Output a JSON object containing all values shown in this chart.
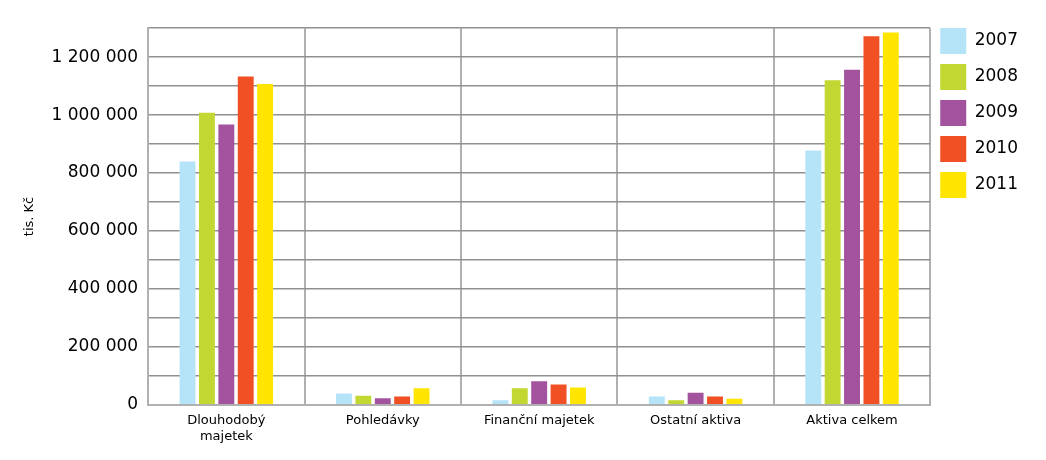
{
  "chart_data": {
    "type": "bar",
    "ylabel": "tis. Kč",
    "categories": [
      "Dlouhodobý majetek",
      "Pohledávky",
      "Finanční majetek",
      "Ostatní aktiva",
      "Aktiva celkem"
    ],
    "series": [
      {
        "name": "2007",
        "color": "#b5e3f8",
        "values": [
          840000,
          39000,
          16000,
          29000,
          878000
        ]
      },
      {
        "name": "2008",
        "color": "#c2d731",
        "values": [
          1008000,
          31000,
          57000,
          16000,
          1120000
        ]
      },
      {
        "name": "2009",
        "color": "#a3529d",
        "values": [
          968000,
          23000,
          81000,
          42000,
          1157000
        ]
      },
      {
        "name": "2010",
        "color": "#f05023",
        "values": [
          1133000,
          29000,
          70000,
          29000,
          1272000
        ]
      },
      {
        "name": "2011",
        "color": "#ffe500",
        "values": [
          1107000,
          57000,
          60000,
          21000,
          1285000
        ]
      }
    ],
    "ylim": [
      0,
      1300000
    ],
    "yticks": [
      {
        "value": 0,
        "label": "0"
      },
      {
        "value": 100000,
        "label": null
      },
      {
        "value": 200000,
        "label": "200 000"
      },
      {
        "value": 300000,
        "label": null
      },
      {
        "value": 400000,
        "label": "400 000"
      },
      {
        "value": 500000,
        "label": null
      },
      {
        "value": 600000,
        "label": "600 000"
      },
      {
        "value": 700000,
        "label": null
      },
      {
        "value": 800000,
        "label": "800 000"
      },
      {
        "value": 900000,
        "label": null
      },
      {
        "value": 1000000,
        "label": "1 000 000"
      },
      {
        "value": 1100000,
        "label": null
      },
      {
        "value": 1200000,
        "label": "1 200 000"
      },
      {
        "value": 1300000,
        "label": null
      }
    ],
    "grid": true,
    "legend": "right"
  }
}
